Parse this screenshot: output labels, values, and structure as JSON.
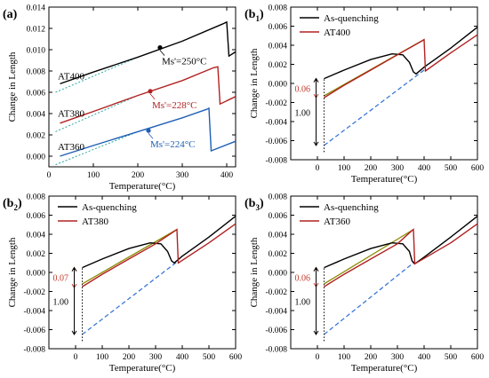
{
  "colors": {
    "black": "#000000",
    "red": "#b22222",
    "olive": "#8a8a00",
    "blue": "#1f5fb4",
    "dashedBlue": "#3a78d8",
    "annRed": "#c0392b",
    "cyanFit": "#2aa7a7"
  },
  "chart_data": [
    {
      "id": "a",
      "type": "line",
      "panel_label": "(a)",
      "xlabel": "Temperature(°C)",
      "ylabel": "Change in Length",
      "xlim": [
        0,
        420
      ],
      "ylim": [
        -0.001,
        0.014
      ],
      "xticks": [
        "0",
        "100",
        "200",
        "300",
        "400"
      ],
      "xtick_values": [
        0,
        100,
        200,
        300,
        400
      ],
      "yticks": [
        "0.000",
        "0.002",
        "0.004",
        "0.006",
        "0.008",
        "0.010",
        "0.012",
        "0.014"
      ],
      "ytick_values": [
        0.0,
        0.002,
        0.004,
        0.006,
        0.008,
        0.01,
        0.012,
        0.014
      ],
      "series": [
        {
          "name": "AT400",
          "color_key": "black",
          "x": [
            25,
            100,
            200,
            300,
            390,
            400,
            405,
            420
          ],
          "y": [
            0.0068,
            0.0079,
            0.0093,
            0.0108,
            0.0124,
            0.0126,
            0.0094,
            0.0098
          ]
        },
        {
          "name": "AT380",
          "color_key": "red",
          "x": [
            25,
            100,
            200,
            300,
            370,
            380,
            385,
            420
          ],
          "y": [
            0.0031,
            0.0042,
            0.0057,
            0.0071,
            0.0083,
            0.0084,
            0.0049,
            0.0056
          ]
        },
        {
          "name": "AT360",
          "color_key": "blue",
          "x": [
            25,
            100,
            200,
            300,
            355,
            360,
            365,
            420
          ],
          "y": [
            0.0,
            0.001,
            0.0023,
            0.0036,
            0.0044,
            0.0045,
            0.0005,
            0.0014
          ]
        }
      ],
      "markers": [
        {
          "label": "Ms'=250°C",
          "x": 250,
          "y": 0.0102,
          "color_key": "black"
        },
        {
          "label": "Ms'=228°C",
          "x": 228,
          "y": 0.0061,
          "color_key": "red"
        },
        {
          "label": "Ms'=224°C",
          "x": 224,
          "y": 0.0024,
          "color_key": "blue"
        }
      ],
      "series_labels": [
        {
          "text": "AT400",
          "x": 20,
          "y": 0.0072
        },
        {
          "text": "AT380",
          "x": 20,
          "y": 0.0037
        },
        {
          "text": "AT360",
          "x": 20,
          "y": 0.0006
        }
      ]
    },
    {
      "id": "b1",
      "type": "line",
      "panel_label": "(b1)",
      "panel_label_main": "(b",
      "panel_label_sub": "1",
      "xlabel": "Temperature(°C)",
      "ylabel": "Change in Length",
      "xlim": [
        -100,
        600
      ],
      "ylim": [
        -0.008,
        0.008
      ],
      "xticks": [
        "0",
        "100",
        "200",
        "300",
        "400",
        "500",
        "600"
      ],
      "xtick_values": [
        0,
        100,
        200,
        300,
        400,
        500,
        600
      ],
      "yticks": [
        "-0.008",
        "-0.006",
        "-0.004",
        "-0.002",
        "0.000",
        "0.002",
        "0.004",
        "0.006",
        "0.008"
      ],
      "ytick_values": [
        -0.008,
        -0.006,
        -0.004,
        -0.002,
        0.0,
        0.002,
        0.004,
        0.006,
        0.008
      ],
      "legend": [
        "As-quenching",
        "AT400"
      ],
      "series": [
        {
          "name": "As-quenching",
          "color_key": "black",
          "x": [
            25,
            100,
            200,
            280,
            320,
            345,
            360,
            370,
            400,
            500,
            600
          ],
          "y": [
            0.0005,
            0.0014,
            0.0025,
            0.0031,
            0.003,
            0.0022,
            0.0012,
            0.001,
            0.0017,
            0.0037,
            0.0059
          ]
        },
        {
          "name": "AT400",
          "color_key": "red",
          "x": [
            25,
            100,
            200,
            300,
            395,
            400,
            405,
            500,
            600
          ],
          "y": [
            -0.0015,
            -0.0002,
            0.0014,
            0.003,
            0.0045,
            0.0046,
            0.0013,
            0.0032,
            0.0051
          ]
        }
      ],
      "guides": [
        {
          "style": "dashed",
          "color_key": "dashedBlue",
          "x": [
            25,
            400
          ],
          "y": [
            -0.0065,
            0.0014
          ]
        },
        {
          "style": "solid",
          "color_key": "olive",
          "x": [
            25,
            400
          ],
          "y": [
            -0.0013,
            0.0046
          ]
        },
        {
          "style": "dotted",
          "color_key": "black",
          "x": [
            25,
            25
          ],
          "y": [
            -0.0072,
            0.0006
          ]
        }
      ],
      "annotations": [
        {
          "text": "0.06",
          "color_key": "annRed",
          "x": -20,
          "y": -0.0005,
          "arrow_top": 0.0005,
          "arrow_bottom": -0.0015
        },
        {
          "text": "1.00",
          "color_key": "black",
          "x": -20,
          "y": -0.003,
          "arrow_top": 0.0005,
          "arrow_bottom": -0.0065
        }
      ]
    },
    {
      "id": "b2",
      "type": "line",
      "panel_label": "(b2)",
      "panel_label_main": "(b",
      "panel_label_sub": "2",
      "xlabel": "Temperature(°C)",
      "ylabel": "Change in Length",
      "xlim": [
        -100,
        600
      ],
      "ylim": [
        -0.008,
        0.008
      ],
      "xticks": [
        "0",
        "100",
        "200",
        "300",
        "400",
        "500",
        "600"
      ],
      "xtick_values": [
        0,
        100,
        200,
        300,
        400,
        500,
        600
      ],
      "yticks": [
        "-0.008",
        "-0.006",
        "-0.004",
        "-0.002",
        "0.000",
        "0.002",
        "0.004",
        "0.006",
        "0.008"
      ],
      "ytick_values": [
        -0.008,
        -0.006,
        -0.004,
        -0.002,
        0.0,
        0.002,
        0.004,
        0.006,
        0.008
      ],
      "legend": [
        "As-quenching",
        "AT380"
      ],
      "series": [
        {
          "name": "As-quenching",
          "color_key": "black",
          "x": [
            25,
            100,
            200,
            280,
            320,
            345,
            360,
            370,
            400,
            500,
            600
          ],
          "y": [
            0.0005,
            0.0014,
            0.0025,
            0.0031,
            0.003,
            0.0022,
            0.0012,
            0.001,
            0.0017,
            0.0037,
            0.0059
          ]
        },
        {
          "name": "AT380",
          "color_key": "red",
          "x": [
            25,
            100,
            200,
            300,
            375,
            380,
            385,
            500,
            600
          ],
          "y": [
            -0.0015,
            -0.0002,
            0.0014,
            0.003,
            0.0044,
            0.0045,
            0.001,
            0.0031,
            0.0051
          ]
        }
      ],
      "guides": [
        {
          "style": "dashed",
          "color_key": "dashedBlue",
          "x": [
            25,
            380
          ],
          "y": [
            -0.0065,
            0.0011
          ]
        },
        {
          "style": "solid",
          "color_key": "olive",
          "x": [
            25,
            380
          ],
          "y": [
            -0.0012,
            0.0045
          ]
        },
        {
          "style": "dotted",
          "color_key": "black",
          "x": [
            25,
            25
          ],
          "y": [
            -0.0072,
            0.0006
          ]
        }
      ],
      "annotations": [
        {
          "text": "0.07",
          "color_key": "annRed",
          "x": -20,
          "y": -0.0005,
          "arrow_top": 0.0005,
          "arrow_bottom": -0.0016
        },
        {
          "text": "1.00",
          "color_key": "black",
          "x": -20,
          "y": -0.003,
          "arrow_top": 0.0005,
          "arrow_bottom": -0.0065
        }
      ]
    },
    {
      "id": "b3",
      "type": "line",
      "panel_label": "(b3)",
      "panel_label_main": "(b",
      "panel_label_sub": "3",
      "xlabel": "Temperature(°C)",
      "ylabel": "Change in Length",
      "xlim": [
        -100,
        600
      ],
      "ylim": [
        -0.008,
        0.008
      ],
      "xticks": [
        "0",
        "100",
        "200",
        "300",
        "400",
        "500",
        "600"
      ],
      "xtick_values": [
        0,
        100,
        200,
        300,
        400,
        500,
        600
      ],
      "yticks": [
        "-0.008",
        "-0.006",
        "-0.004",
        "-0.002",
        "0.000",
        "0.002",
        "0.004",
        "0.006",
        "0.008"
      ],
      "ytick_values": [
        -0.008,
        -0.006,
        -0.004,
        -0.002,
        0.0,
        0.002,
        0.004,
        0.006,
        0.008
      ],
      "legend": [
        "As-quenching",
        "AT360"
      ],
      "series": [
        {
          "name": "As-quenching",
          "color_key": "black",
          "x": [
            25,
            100,
            200,
            280,
            320,
            345,
            355,
            365,
            400,
            500,
            600
          ],
          "y": [
            0.0005,
            0.0014,
            0.0025,
            0.0031,
            0.003,
            0.0022,
            0.0012,
            0.0009,
            0.0016,
            0.0037,
            0.0059
          ]
        },
        {
          "name": "AT360",
          "color_key": "red",
          "x": [
            25,
            100,
            200,
            300,
            355,
            360,
            365,
            500,
            600
          ],
          "y": [
            -0.0015,
            -0.0002,
            0.0014,
            0.003,
            0.0044,
            0.0045,
            0.0009,
            0.0031,
            0.0051
          ]
        }
      ],
      "guides": [
        {
          "style": "dashed",
          "color_key": "dashedBlue",
          "x": [
            25,
            360
          ],
          "y": [
            -0.0065,
            0.001
          ]
        },
        {
          "style": "solid",
          "color_key": "olive",
          "x": [
            25,
            360
          ],
          "y": [
            -0.0012,
            0.0045
          ]
        },
        {
          "style": "dotted",
          "color_key": "black",
          "x": [
            25,
            25
          ],
          "y": [
            -0.0072,
            0.0006
          ]
        }
      ],
      "annotations": [
        {
          "text": "0.06",
          "color_key": "annRed",
          "x": -20,
          "y": -0.0005,
          "arrow_top": 0.0005,
          "arrow_bottom": -0.0015
        },
        {
          "text": "1.00",
          "color_key": "black",
          "x": -20,
          "y": -0.003,
          "arrow_top": 0.0005,
          "arrow_bottom": -0.0065
        }
      ]
    }
  ]
}
